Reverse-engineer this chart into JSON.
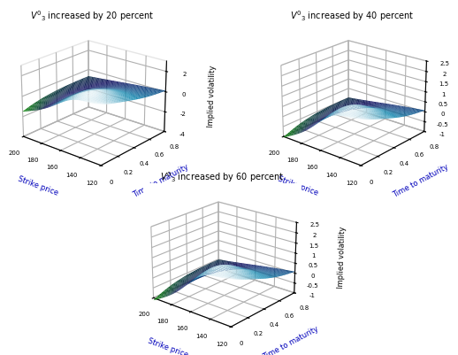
{
  "titles": [
    "$V'_3$ increased by 20 percent",
    "$V'_3$ increased by 40 percent",
    "$V'_3$ increased by 60 percent"
  ],
  "xlabel": "Strike price",
  "ylabel": "Time to maturity",
  "zlabel": "Implied volatility",
  "strike_range": [
    120,
    200
  ],
  "time_range": [
    0,
    0.8
  ],
  "n_strike": 40,
  "n_time": 40,
  "v3_params": [
    {
      "scale": 1.0,
      "zlim": [
        -4,
        3
      ],
      "zticks": [
        -4,
        -2,
        0,
        2
      ]
    },
    {
      "scale": 0.7,
      "zlim": [
        -1,
        2.5
      ],
      "zticks": [
        -1,
        -0.5,
        0,
        0.5,
        1,
        1.5,
        2,
        2.5
      ]
    },
    {
      "scale": 0.75,
      "zlim": [
        -1,
        2.5
      ],
      "zticks": [
        -1,
        -0.5,
        0,
        0.5,
        1,
        1.5,
        2,
        2.5
      ]
    }
  ],
  "background_color": "#ffffff",
  "label_color": "#0000bb",
  "title_fontsize": 7.0,
  "axis_fontsize": 6.0,
  "tick_fontsize": 5.0,
  "elev": 22,
  "azim": -50
}
